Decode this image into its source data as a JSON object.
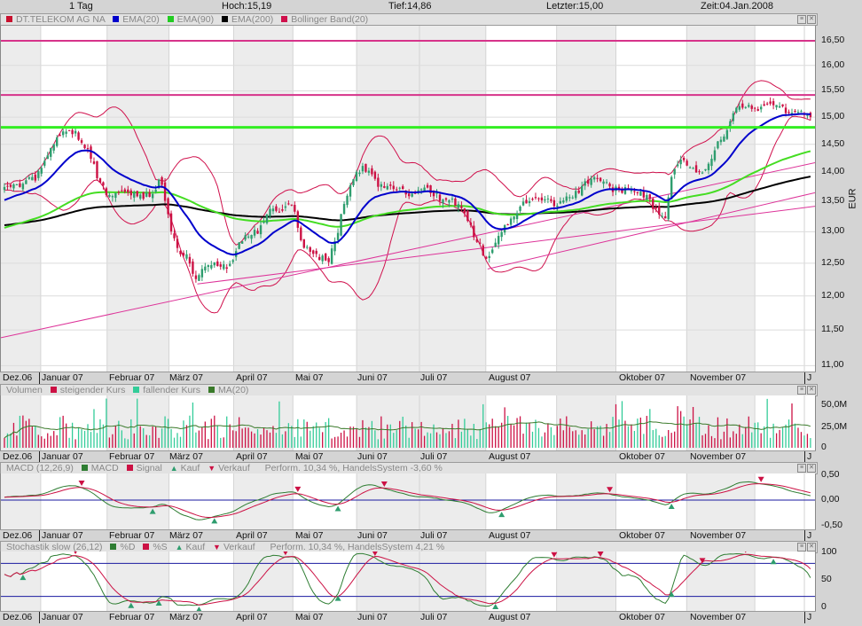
{
  "header": {
    "interval": "1 Tag",
    "high": "Hoch:15,19",
    "low": "Tief:14,86",
    "last": "Letzter:15,00",
    "time": "Zeit:04.Jan.2008"
  },
  "panels": {
    "main": {
      "legend": [
        "DT.TELEKOM AG NA",
        "EMA(20)",
        "EMA(90)",
        "EMA(200)",
        "Bollinger Band(20)"
      ],
      "legend_colors": [
        "#c8102e",
        "#0000cc",
        "#22cc22",
        "#000000",
        "#d0104c"
      ],
      "axis_unit": "EUR"
    },
    "volume": {
      "legend": [
        "Volumen",
        "steigender Kurs",
        "fallender Kurs",
        "MA(20)"
      ],
      "legend_colors": [
        "#cc1144",
        "#33cc99",
        "#3a7a2a"
      ]
    },
    "macd": {
      "legend": [
        "MACD (12,26,9)",
        "MACD",
        "Signal",
        "Kauf",
        "Verkauf"
      ],
      "perf": "Perform. 10,34 %, HandelsSystem -3,60 %",
      "legend_colors": [
        "#2e7d32",
        "#cc1144",
        "#2e9d6e",
        "#cc1144"
      ]
    },
    "stoch": {
      "legend": [
        "Stochastik slow (26,12)",
        "%D",
        "%S",
        "Kauf",
        "Verkauf"
      ],
      "perf": "Perform. 10,34 %, HandelsSystem 4,21 %",
      "legend_colors": [
        "#2e7d32",
        "#cc1144",
        "#2e9d6e",
        "#cc1144"
      ]
    }
  },
  "date_labels": [
    "Dez.06",
    "Januar 07",
    "Februar 07",
    "März 07",
    "April 07",
    "Mai 07",
    "Juni 07",
    "Juli 07",
    "August 07",
    "Oktober 07",
    "November 07",
    "J"
  ],
  "chart_data": [
    {
      "type": "candlestick",
      "title": "DT.TELEKOM AG NA",
      "ylabel": "EUR",
      "scale": "log",
      "ylim": [
        11.0,
        16.5
      ],
      "y_ticks": [
        "16,50",
        "16,00",
        "15,50",
        "15,00",
        "14,50",
        "14,00",
        "13,50",
        "13,00",
        "12,50",
        "12,00",
        "11,50",
        "11,00"
      ],
      "grid": true,
      "approx_close_series": [
        13.7,
        13.75,
        13.8,
        13.85,
        13.9,
        14.2,
        14.55,
        14.7,
        14.75,
        14.6,
        14.35,
        13.9,
        13.6,
        13.65,
        13.7,
        13.65,
        13.6,
        13.6,
        13.9,
        13.2,
        12.65,
        12.6,
        12.3,
        12.45,
        12.5,
        12.45,
        12.45,
        12.85,
        12.95,
        13.0,
        13.3,
        13.35,
        13.4,
        13.4,
        12.8,
        12.7,
        12.6,
        12.55,
        12.95,
        13.6,
        14.0,
        14.1,
        13.9,
        13.75,
        13.75,
        13.7,
        13.6,
        13.65,
        13.7,
        13.6,
        13.55,
        13.5,
        13.4,
        13.1,
        12.8,
        12.55,
        12.9,
        13.1,
        13.3,
        13.45,
        13.5,
        13.55,
        13.5,
        13.45,
        13.55,
        13.65,
        13.8,
        13.9,
        13.85,
        13.7,
        13.7,
        13.7,
        13.65,
        13.6,
        13.35,
        13.15,
        14.1,
        14.2,
        14.05,
        13.95,
        14.1,
        14.55,
        14.75,
        15.15,
        15.2,
        15.15,
        15.15,
        15.25,
        15.2,
        15.1,
        15.1,
        15.0
      ],
      "last": 15.0,
      "indicators": [
        "EMA(20)",
        "EMA(90)",
        "EMA(200)",
        "Bollinger Band(20)"
      ],
      "horizontal_lines": [
        {
          "price": 16.5,
          "color": "#d6338a"
        },
        {
          "price": 15.42,
          "color": "#d6338a"
        },
        {
          "price": 14.81,
          "color": "#33ee22"
        }
      ],
      "trendlines": [
        {
          "from_price": 11.39,
          "to_price": 14.17,
          "color": "#dd3399"
        },
        {
          "from_price": 12.18,
          "to_price": 13.42,
          "color": "#dd3399"
        },
        {
          "from_price": 12.41,
          "to_price": 13.65,
          "color": "#dd3399"
        }
      ],
      "colors": {
        "up": "#2e9d6e",
        "down": "#cc1144",
        "ema20": "#0000cc",
        "ema90": "#44dd22",
        "ema200": "#000000",
        "bollinger": "#d0104c"
      }
    },
    {
      "type": "bar",
      "title": "Volumen",
      "ylim": [
        0,
        60000000
      ],
      "y_ticks": [
        "50,0M",
        "25,0M",
        "0"
      ],
      "series": [
        {
          "name": "steigender Kurs"
        },
        {
          "name": "fallender Kurs"
        },
        {
          "name": "MA(20)"
        }
      ]
    },
    {
      "type": "line",
      "title": "MACD (12,26,9)",
      "ylim": [
        -0.5,
        0.5
      ],
      "y_ticks": [
        "0,50",
        "0,00",
        "-0,50"
      ],
      "series": [
        {
          "name": "MACD"
        },
        {
          "name": "Signal"
        }
      ]
    },
    {
      "type": "line",
      "title": "Stochastik slow (26,12)",
      "ylim": [
        0,
        100
      ],
      "y_ticks": [
        "100",
        "50",
        "0"
      ],
      "reference_lines": [
        80,
        20
      ],
      "series": [
        {
          "name": "%D"
        },
        {
          "name": "%S"
        }
      ]
    }
  ]
}
